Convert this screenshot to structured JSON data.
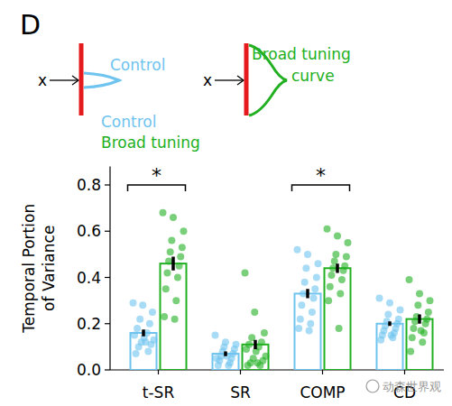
{
  "chart_data": {
    "type": "bar",
    "title": "D",
    "ylabel": [
      "Temporal Portion",
      "of Variance"
    ],
    "categories": [
      "t-SR",
      "SR",
      "COMP",
      "CD"
    ],
    "ylim": [
      0,
      0.88
    ],
    "yticks": [
      {
        "value": 0,
        "label": "0.0"
      },
      0.2,
      0.4,
      0.6,
      0.8
    ],
    "legend": "top",
    "series": [
      {
        "name": "Control",
        "color": "#6ec3ef",
        "values": [
          0.16,
          0.07,
          0.33,
          0.2
        ],
        "errors": [
          0.015,
          0.01,
          0.02,
          0.01
        ],
        "points": [
          [
            0.29,
            0.28,
            0.25,
            0.22,
            0.2,
            0.18,
            0.16,
            0.15,
            0.14,
            0.13,
            0.12,
            0.11,
            0.1,
            0.08,
            0.07,
            0.12
          ],
          [
            0.15,
            0.12,
            0.11,
            0.1,
            0.09,
            0.08,
            0.07,
            0.06,
            0.05,
            0.04,
            0.03,
            0.02,
            0.02,
            0.05,
            0.06
          ],
          [
            0.52,
            0.5,
            0.46,
            0.44,
            0.4,
            0.38,
            0.35,
            0.33,
            0.31,
            0.28,
            0.25,
            0.22,
            0.2,
            0.18,
            0.17
          ],
          [
            0.31,
            0.29,
            0.26,
            0.24,
            0.22,
            0.21,
            0.2,
            0.19,
            0.18,
            0.17,
            0.16,
            0.15,
            0.14,
            0.13,
            0.15
          ]
        ]
      },
      {
        "name": "Broad tuning",
        "color": "#22b022",
        "values": [
          0.46,
          0.11,
          0.44,
          0.22
        ],
        "errors": [
          0.03,
          0.02,
          0.02,
          0.02
        ],
        "points": [
          [
            0.68,
            0.66,
            0.6,
            0.56,
            0.53,
            0.51,
            0.49,
            0.47,
            0.45,
            0.42,
            0.4,
            0.35,
            0.3,
            0.23,
            0.22
          ],
          [
            0.42,
            0.25,
            0.16,
            0.14,
            0.12,
            0.11,
            0.1,
            0.09,
            0.08,
            0.06,
            0.05,
            0.04,
            0.03,
            0.02,
            0.02,
            0.03
          ],
          [
            0.61,
            0.58,
            0.55,
            0.5,
            0.49,
            0.47,
            0.45,
            0.44,
            0.43,
            0.41,
            0.39,
            0.36,
            0.33,
            0.3,
            0.18
          ],
          [
            0.39,
            0.33,
            0.3,
            0.28,
            0.25,
            0.23,
            0.22,
            0.21,
            0.2,
            0.18,
            0.16,
            0.14,
            0.12,
            0.08,
            0.17
          ]
        ]
      }
    ],
    "annotations": [
      {
        "text": "*",
        "category": "t-SR"
      },
      {
        "text": "*",
        "category": "COMP"
      }
    ],
    "schematic": [
      {
        "input": "x",
        "label_lines": [
          "Control"
        ],
        "color": "#6ec3ef",
        "boundary_color": "#e41a1c"
      },
      {
        "input": "x",
        "label_lines": [
          "Broad tuning",
          "curve"
        ],
        "color": "#22b022",
        "boundary_color": "#e41a1c"
      }
    ],
    "watermark": "动森世界观"
  }
}
